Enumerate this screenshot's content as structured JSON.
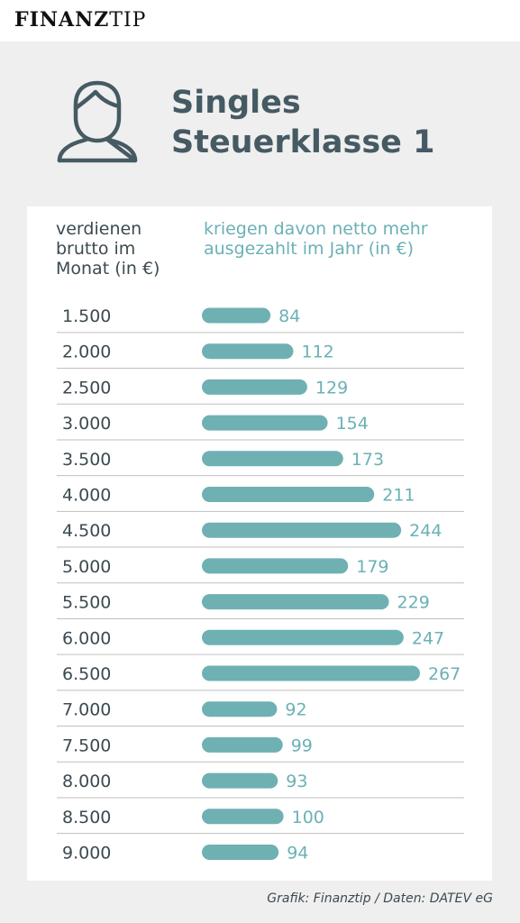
{
  "brand": {
    "part1": "FINANZ",
    "part2": "TIP"
  },
  "title": {
    "line1": "Singles",
    "line2": "Steuerklasse 1"
  },
  "header": {
    "left": "verdienen brutto im Monat (in €)",
    "right": "kriegen davon netto mehr ausgezahlt im Jahr (in €)"
  },
  "source": "Grafik: Finanztip / Daten: DATEV eG",
  "icons": {
    "person": "person-icon"
  },
  "colors": {
    "bar": "#6fb0b3",
    "value_label": "#6bb1b5",
    "title": "#465a63",
    "text": "#3c4a50",
    "background": "#efefef",
    "divider": "#bfbfbf"
  },
  "chart_data": {
    "type": "bar",
    "orientation": "horizontal",
    "categories": [
      "1.500",
      "2.000",
      "2.500",
      "3.000",
      "3.500",
      "4.000",
      "4.500",
      "5.000",
      "5.500",
      "6.000",
      "6.500",
      "7.000",
      "7.500",
      "8.000",
      "8.500",
      "9.000"
    ],
    "values": [
      84,
      112,
      129,
      154,
      173,
      211,
      244,
      179,
      229,
      247,
      267,
      92,
      99,
      93,
      100,
      94
    ],
    "value_labels": [
      "84",
      "112",
      "129",
      "154",
      "173",
      "211",
      "244",
      "179",
      "229",
      "247",
      "267",
      "92",
      "99",
      "93",
      "100",
      "94"
    ],
    "xlabel": "kriegen davon netto mehr ausgezahlt im Jahr (in €)",
    "ylabel": "verdienen brutto im Monat (in €)",
    "xlim": [
      0,
      267
    ],
    "grid": false
  }
}
